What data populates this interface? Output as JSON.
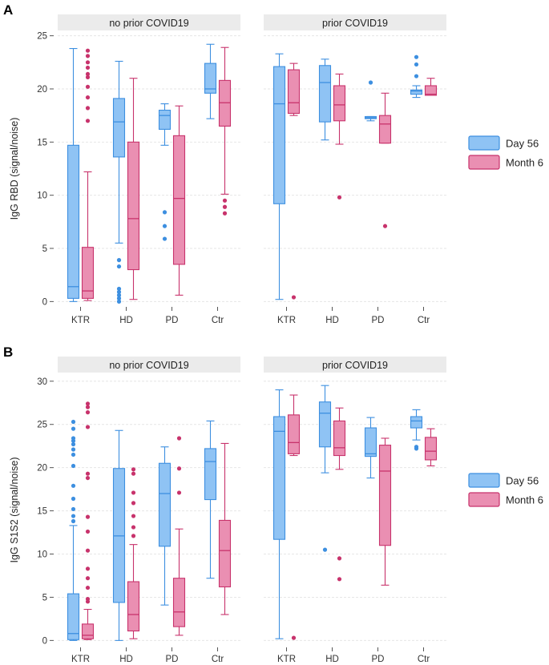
{
  "colors": {
    "day56_fill": "#8fc3f4",
    "day56_stroke": "#3d8fe0",
    "month6_fill": "#ea8fb2",
    "month6_stroke": "#c8336c",
    "strip_bg": "#ebebeb",
    "grid": "#e6e6e6"
  },
  "legend": {
    "items": [
      {
        "label": "Day 56",
        "series": "day56"
      },
      {
        "label": "Month 6",
        "series": "month6"
      }
    ]
  },
  "chart_data": [
    {
      "type": "box",
      "panel_label": "A",
      "ylabel": "IgG RBD (signal/noise)",
      "ylim": [
        -0.5,
        25.5
      ],
      "yticks": [
        0,
        5,
        10,
        15,
        20,
        25
      ],
      "categories": [
        "KTR",
        "HD",
        "PD",
        "Ctr"
      ],
      "facets": [
        {
          "title": "no prior COVID19",
          "boxes": [
            {
              "cat": "KTR",
              "series": "day56",
              "whislo": 0,
              "q1": 0.3,
              "med": 1.4,
              "q3": 14.7,
              "whishi": 23.8,
              "fliers": []
            },
            {
              "cat": "KTR",
              "series": "month6",
              "whislo": 0.1,
              "q1": 0.3,
              "med": 1.0,
              "q3": 5.1,
              "whishi": 12.2,
              "fliers": [
                17.0,
                18.2,
                19.2,
                20.2,
                21.1,
                21.4,
                22.0,
                22.5,
                23.1,
                23.6
              ]
            },
            {
              "cat": "HD",
              "series": "day56",
              "whislo": 5.5,
              "q1": 13.6,
              "med": 16.9,
              "q3": 19.1,
              "whishi": 22.6,
              "fliers": [
                0,
                0.3,
                0.6,
                0.9,
                1.2,
                3.3,
                3.9
              ]
            },
            {
              "cat": "HD",
              "series": "month6",
              "whislo": 0.2,
              "q1": 3.0,
              "med": 7.8,
              "q3": 15.0,
              "whishi": 21.0,
              "fliers": []
            },
            {
              "cat": "PD",
              "series": "day56",
              "whislo": 14.7,
              "q1": 16.2,
              "med": 17.5,
              "q3": 18.0,
              "whishi": 18.6,
              "fliers": [
                5.9,
                7.1,
                8.4
              ]
            },
            {
              "cat": "PD",
              "series": "month6",
              "whislo": 0.6,
              "q1": 3.5,
              "med": 9.7,
              "q3": 15.6,
              "whishi": 18.4,
              "fliers": []
            },
            {
              "cat": "Ctr",
              "series": "day56",
              "whislo": 17.2,
              "q1": 19.6,
              "med": 20.0,
              "q3": 22.4,
              "whishi": 24.2,
              "fliers": []
            },
            {
              "cat": "Ctr",
              "series": "month6",
              "whislo": 10.1,
              "q1": 16.5,
              "med": 18.7,
              "q3": 20.8,
              "whishi": 23.9,
              "fliers": [
                8.3,
                8.9,
                9.5
              ]
            }
          ]
        },
        {
          "title": "prior COVID19",
          "boxes": [
            {
              "cat": "KTR",
              "series": "day56",
              "whislo": 0.2,
              "q1": 9.2,
              "med": 18.6,
              "q3": 22.1,
              "whishi": 23.3,
              "fliers": []
            },
            {
              "cat": "KTR",
              "series": "month6",
              "whislo": 17.5,
              "q1": 17.7,
              "med": 18.7,
              "q3": 21.8,
              "whishi": 22.4,
              "fliers": [
                0.4
              ]
            },
            {
              "cat": "HD",
              "series": "day56",
              "whislo": 15.2,
              "q1": 16.9,
              "med": 20.6,
              "q3": 22.2,
              "whishi": 22.8,
              "fliers": []
            },
            {
              "cat": "HD",
              "series": "month6",
              "whislo": 14.8,
              "q1": 17.0,
              "med": 18.5,
              "q3": 20.3,
              "whishi": 21.4,
              "fliers": [
                9.8
              ]
            },
            {
              "cat": "PD",
              "series": "day56",
              "whislo": 17.0,
              "q1": 17.2,
              "med": 17.3,
              "q3": 17.4,
              "whishi": 17.4,
              "fliers": [
                20.6
              ]
            },
            {
              "cat": "PD",
              "series": "month6",
              "whislo": 14.9,
              "q1": 14.9,
              "med": 16.7,
              "q3": 17.5,
              "whishi": 19.6,
              "fliers": [
                7.1
              ]
            },
            {
              "cat": "Ctr",
              "series": "day56",
              "whislo": 19.2,
              "q1": 19.5,
              "med": 19.8,
              "q3": 19.9,
              "whishi": 20.3,
              "fliers": [
                21.2,
                22.3,
                23.0
              ]
            },
            {
              "cat": "Ctr",
              "series": "month6",
              "whislo": 19.4,
              "q1": 19.4,
              "med": 19.5,
              "q3": 20.3,
              "whishi": 21.0,
              "fliers": []
            }
          ]
        }
      ]
    },
    {
      "type": "box",
      "panel_label": "B",
      "ylabel": "IgG S1S2 (signal/noise)",
      "ylim": [
        -0.8,
        31
      ],
      "yticks": [
        0,
        5,
        10,
        15,
        20,
        25,
        30
      ],
      "categories": [
        "KTR",
        "HD",
        "PD",
        "Ctr"
      ],
      "facets": [
        {
          "title": "no prior COVID19",
          "boxes": [
            {
              "cat": "KTR",
              "series": "day56",
              "whislo": 0,
              "q1": 0.1,
              "med": 0.8,
              "q3": 5.4,
              "whishi": 13.3,
              "fliers": [
                13.8,
                14.4,
                15.2,
                16.4,
                17.9,
                20.2,
                21.5,
                22.1,
                22.7,
                23.1,
                23.4,
                24.5,
                25.3
              ]
            },
            {
              "cat": "KTR",
              "series": "month6",
              "whislo": 0.1,
              "q1": 0.2,
              "med": 0.6,
              "q3": 1.9,
              "whishi": 3.6,
              "fliers": [
                4.5,
                4.8,
                6.1,
                7.2,
                8.3,
                10.4,
                12.6,
                14.3,
                18.8,
                19.3,
                24.7,
                26.4,
                27.0,
                27.4
              ]
            },
            {
              "cat": "HD",
              "series": "day56",
              "whislo": 0,
              "q1": 4.4,
              "med": 12.1,
              "q3": 19.9,
              "whishi": 24.3,
              "fliers": []
            },
            {
              "cat": "HD",
              "series": "month6",
              "whislo": 0.2,
              "q1": 1.1,
              "med": 3.0,
              "q3": 6.8,
              "whishi": 11.1,
              "fliers": [
                12.1,
                13.1,
                14.4,
                15.9,
                17.1,
                19.3,
                19.8
              ]
            },
            {
              "cat": "PD",
              "series": "day56",
              "whislo": 4.1,
              "q1": 10.9,
              "med": 17.0,
              "q3": 20.5,
              "whishi": 22.4,
              "fliers": []
            },
            {
              "cat": "PD",
              "series": "month6",
              "whislo": 0.6,
              "q1": 1.6,
              "med": 3.3,
              "q3": 7.2,
              "whishi": 12.9,
              "fliers": [
                17.1,
                19.9,
                23.4
              ]
            },
            {
              "cat": "Ctr",
              "series": "day56",
              "whislo": 7.2,
              "q1": 16.3,
              "med": 20.7,
              "q3": 22.2,
              "whishi": 25.4,
              "fliers": []
            },
            {
              "cat": "Ctr",
              "series": "month6",
              "whislo": 3.0,
              "q1": 6.2,
              "med": 10.4,
              "q3": 13.9,
              "whishi": 22.8,
              "fliers": []
            }
          ]
        },
        {
          "title": "prior COVID19",
          "boxes": [
            {
              "cat": "KTR",
              "series": "day56",
              "whislo": 0.2,
              "q1": 11.7,
              "med": 24.2,
              "q3": 25.9,
              "whishi": 29.0,
              "fliers": []
            },
            {
              "cat": "KTR",
              "series": "month6",
              "whislo": 21.4,
              "q1": 21.6,
              "med": 22.9,
              "q3": 26.1,
              "whishi": 28.4,
              "fliers": [
                0.3
              ]
            },
            {
              "cat": "HD",
              "series": "day56",
              "whislo": 19.4,
              "q1": 22.4,
              "med": 26.3,
              "q3": 27.6,
              "whishi": 29.5,
              "fliers": [
                10.5
              ]
            },
            {
              "cat": "HD",
              "series": "month6",
              "whislo": 19.8,
              "q1": 21.4,
              "med": 22.3,
              "q3": 25.4,
              "whishi": 26.9,
              "fliers": [
                7.1,
                9.5
              ]
            },
            {
              "cat": "PD",
              "series": "day56",
              "whislo": 18.8,
              "q1": 21.3,
              "med": 21.6,
              "q3": 24.6,
              "whishi": 25.8,
              "fliers": []
            },
            {
              "cat": "PD",
              "series": "month6",
              "whislo": 6.4,
              "q1": 11.0,
              "med": 19.6,
              "q3": 22.6,
              "whishi": 23.4,
              "fliers": []
            },
            {
              "cat": "Ctr",
              "series": "day56",
              "whislo": 23.2,
              "q1": 24.6,
              "med": 25.4,
              "q3": 25.9,
              "whishi": 26.7,
              "fliers": [
                22.2,
                22.4
              ]
            },
            {
              "cat": "Ctr",
              "series": "month6",
              "whislo": 20.2,
              "q1": 20.9,
              "med": 21.9,
              "q3": 23.5,
              "whishi": 24.5,
              "fliers": []
            }
          ]
        }
      ]
    }
  ]
}
